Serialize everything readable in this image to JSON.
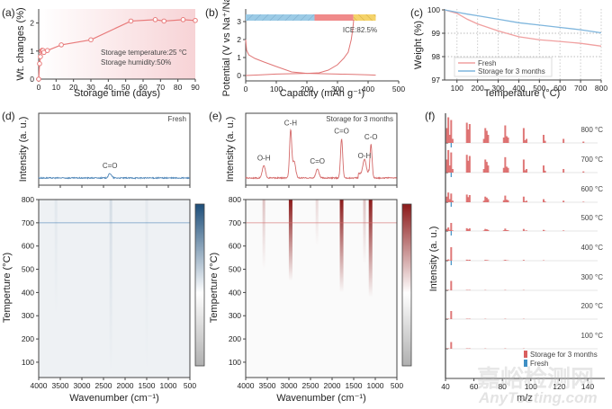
{
  "chart_data": [
    {
      "panel": "(a)",
      "type": "line",
      "xlabel": "Storage time (days)",
      "ylabel": "Wt. changes (%)",
      "xlim": [
        0,
        90
      ],
      "ylim": [
        0,
        2.5
      ],
      "xticks": [
        0,
        10,
        20,
        30,
        40,
        50,
        60,
        70,
        80,
        90
      ],
      "yticks": [
        0,
        1,
        2
      ],
      "color": "#e87a7a",
      "x": [
        0,
        0.5,
        1,
        1.5,
        2,
        2.5,
        3,
        5,
        13,
        30,
        53,
        67,
        72,
        83,
        90
      ],
      "y": [
        0,
        0.55,
        0.8,
        1.0,
        1.03,
        1.02,
        0.95,
        1.02,
        1.22,
        1.4,
        2.07,
        2.12,
        2.07,
        2.12,
        2.09
      ],
      "annotations": [
        "Storage temperature:25 °C",
        "Storage humidity:50%"
      ]
    },
    {
      "panel": "(b)",
      "type": "line",
      "xlabel": "Capacity (mAh g⁻¹)",
      "ylabel": "Potential (V vs Na⁺/Na)",
      "xlim": [
        0,
        500
      ],
      "ylim": [
        -0.3,
        3.7
      ],
      "xticks": [
        0,
        100,
        200,
        300,
        400,
        500
      ],
      "yticks": [
        0,
        1,
        2,
        3
      ],
      "color": "#e07575",
      "series": [
        {
          "x": [
            0,
            3,
            10,
            30,
            60,
            100,
            150,
            200,
            250,
            300,
            350,
            400,
            425
          ],
          "y": [
            2.0,
            1.4,
            1.15,
            0.95,
            0.75,
            0.5,
            0.2,
            0.12,
            0.1,
            0.08,
            0.06,
            0.04,
            0.02
          ]
        },
        {
          "x": [
            0,
            50,
            100,
            150,
            200,
            240,
            270,
            300,
            320,
            335,
            345,
            350,
            353
          ],
          "y": [
            0.0,
            0.04,
            0.08,
            0.1,
            0.12,
            0.15,
            0.3,
            0.6,
            0.95,
            1.3,
            2.0,
            2.6,
            3.1
          ]
        }
      ],
      "bar_segments": [
        {
          "from": 0,
          "to": 225,
          "color": "#9ccbe6"
        },
        {
          "from": 225,
          "to": 352,
          "color": "#f08a8a"
        },
        {
          "from": 352,
          "to": 425,
          "color": "#f5d36a"
        }
      ],
      "annotation": "ICE:82.5%"
    },
    {
      "panel": "(c)",
      "type": "line",
      "xlabel": "Temperature (°C)",
      "ylabel": "Weight (%)",
      "xlim": [
        40,
        800
      ],
      "ylim": [
        97,
        100
      ],
      "xticks": [
        100,
        200,
        300,
        400,
        500,
        600,
        700,
        800
      ],
      "yticks": [
        97,
        98,
        99,
        100
      ],
      "grid": true,
      "legend": "bottom-left",
      "series": [
        {
          "name": "Fresh",
          "color": "#f0a0a0",
          "x": [
            40,
            100,
            150,
            200,
            300,
            400,
            500,
            600,
            700,
            800
          ],
          "y": [
            100,
            99.85,
            99.6,
            99.4,
            99.1,
            98.85,
            98.72,
            98.65,
            98.57,
            98.45
          ]
        },
        {
          "name": "Storage for 3 months",
          "color": "#7fb6dd",
          "x": [
            40,
            100,
            150,
            200,
            300,
            400,
            500,
            600,
            700,
            800
          ],
          "y": [
            100,
            99.9,
            99.82,
            99.75,
            99.6,
            99.45,
            99.35,
            99.25,
            99.15,
            99.02
          ]
        }
      ]
    },
    {
      "panel": "(d)",
      "type": "heatmap",
      "label": "Fresh",
      "spectrum_ylabel": "Intensity (a. u.)",
      "xlabel": "Wavenumber (cm⁻¹)",
      "ylabel": "Temperture (°C)",
      "xlim": [
        4000,
        500
      ],
      "ylim": [
        34,
        800
      ],
      "xticks": [
        4000,
        3500,
        3000,
        2500,
        2000,
        1500,
        1000,
        500
      ],
      "yticks": [
        100,
        200,
        300,
        400,
        500,
        600,
        700,
        800
      ],
      "line_color": "#4f86b8",
      "colormap": [
        "#b0b0b0",
        "#ffffff",
        "#1d4e79"
      ],
      "slice_temperature": 700,
      "peaks": [
        {
          "wavenumber": 2350,
          "intensity": 0.08,
          "label": "C=O"
        }
      ],
      "streaks": [
        {
          "wavenumber": 2330,
          "tmin": 60,
          "strength": 0.12
        },
        {
          "wavenumber": 3600,
          "tmin": 300,
          "strength": 0.06
        },
        {
          "wavenumber": 1500,
          "tmin": 50,
          "strength": 0.05
        }
      ]
    },
    {
      "panel": "(e)",
      "type": "heatmap",
      "label": "Storage for 3 months",
      "spectrum_ylabel": "Intensity (a. u.)",
      "xlabel": "Wavenumber (cm⁻¹)",
      "ylabel": "Temperture (°C)",
      "xlim": [
        4000,
        500
      ],
      "ylim": [
        34,
        800
      ],
      "xticks": [
        4000,
        3500,
        3000,
        2500,
        2000,
        1500,
        1000,
        500
      ],
      "yticks": [
        100,
        200,
        300,
        400,
        500,
        600,
        700,
        800
      ],
      "line_color": "#d46a6a",
      "colormap": [
        "#b0b0b0",
        "#ffffff",
        "#8b1a1a"
      ],
      "slice_temperature": 700,
      "peaks": [
        {
          "wavenumber": 3580,
          "intensity": 0.22,
          "label": "O-H"
        },
        {
          "wavenumber": 2960,
          "intensity": 0.85,
          "label": "C-H"
        },
        {
          "wavenumber": 2880,
          "intensity": 0.3,
          "label": ""
        },
        {
          "wavenumber": 2340,
          "intensity": 0.16,
          "label": "C=O"
        },
        {
          "wavenumber": 1780,
          "intensity": 0.7,
          "label": "C=O"
        },
        {
          "wavenumber": 1250,
          "intensity": 0.26,
          "label": "O-H"
        },
        {
          "wavenumber": 1100,
          "intensity": 0.6,
          "label": "C-O"
        }
      ],
      "streaks": [
        {
          "wavenumber": 2960,
          "tmin": 450,
          "strength": 1.0
        },
        {
          "wavenumber": 1780,
          "tmin": 400,
          "strength": 1.0
        },
        {
          "wavenumber": 1110,
          "tmin": 380,
          "strength": 1.0
        },
        {
          "wavenumber": 3580,
          "tmin": 500,
          "strength": 0.25
        },
        {
          "wavenumber": 2350,
          "tmin": 600,
          "strength": 0.15
        },
        {
          "wavenumber": 1250,
          "tmin": 520,
          "strength": 0.25
        }
      ]
    },
    {
      "panel": "(f)",
      "type": "bar",
      "xlabel": "m/z",
      "ylabel": "Intensity (a. u.)",
      "xlim": [
        40,
        152
      ],
      "xticks": [
        40,
        60,
        80,
        100,
        120,
        140
      ],
      "temperatures": [
        "800 °C",
        "700 °C",
        "600 °C",
        "500 °C",
        "400 °C",
        "300 °C",
        "200 °C",
        "100 °C"
      ],
      "scales": [
        1,
        0.88,
        0.38,
        0.14,
        0.05,
        0.02,
        0.02,
        0.02
      ],
      "mz": [
        41,
        42,
        43,
        44,
        45,
        55,
        56,
        57,
        67,
        68,
        69,
        70,
        81,
        82,
        83,
        84,
        95,
        96,
        97,
        109,
        110,
        123,
        137
      ],
      "storage_intensity": [
        0.55,
        0.95,
        0.3,
        0.85,
        0.15,
        0.75,
        0.5,
        0.7,
        0.15,
        0.55,
        0.45,
        0.3,
        0.2,
        0.65,
        0.25,
        0.2,
        0.55,
        0.1,
        0.15,
        0.3,
        0.08,
        0.15,
        0.05
      ],
      "peak44_low_temp": [
        0,
        0,
        0,
        0.3,
        0.5,
        0.35,
        0.3,
        0.25
      ],
      "fresh_mz": 44,
      "fresh_intensity": 0.12,
      "legend": "bottom-right",
      "series": [
        {
          "name": "Storage for 3 months",
          "color": "#d96060"
        },
        {
          "name": "Fresh",
          "color": "#3f8fc4"
        }
      ]
    }
  ],
  "watermark": {
    "line1": "嘉峪检测网",
    "line2": "AnyTesting.com"
  }
}
